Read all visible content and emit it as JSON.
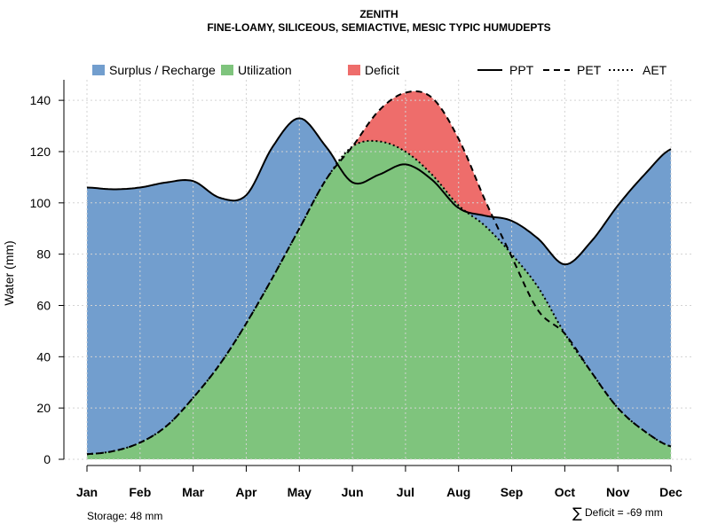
{
  "chart_data": {
    "type": "area",
    "title": "ZENITH",
    "subtitle": "FINE-LOAMY, SILICEOUS, SEMIACTIVE, MESIC TYPIC HUMUDEPTS",
    "xlabel": "",
    "ylabel": "Water (mm)",
    "categories": [
      "Jan",
      "Feb",
      "Mar",
      "Apr",
      "May",
      "Jun",
      "Jul",
      "Aug",
      "Sep",
      "Oct",
      "Nov",
      "Dec"
    ],
    "ylim": [
      0,
      148
    ],
    "yticks": [
      0,
      20,
      40,
      60,
      80,
      100,
      120,
      140
    ],
    "grid": true,
    "series": [
      {
        "name": "PPT",
        "style": "solid",
        "x": [
          1,
          1.5,
          2,
          2.5,
          3,
          3.5,
          4,
          4.5,
          5,
          5.5,
          6,
          6.5,
          7,
          7.5,
          8,
          8.5,
          9,
          9.5,
          10,
          10.5,
          11,
          11.5,
          12
        ],
        "values": [
          106,
          105.3,
          106,
          108,
          108.5,
          102,
          103,
          122,
          133,
          122,
          108,
          111,
          115,
          109,
          98,
          95,
          93,
          86,
          76,
          85,
          99,
          111,
          121
        ]
      },
      {
        "name": "PET",
        "style": "dashed",
        "x": [
          1,
          1.5,
          2,
          2.5,
          3,
          3.5,
          4,
          4.5,
          5,
          5.5,
          6,
          6.5,
          7,
          7.5,
          8,
          8.5,
          9,
          9.5,
          10,
          10.5,
          11,
          11.5,
          12
        ],
        "values": [
          2,
          3.2,
          6.5,
          13,
          24,
          37,
          53,
          71,
          90,
          109,
          122,
          136,
          143,
          141,
          125,
          101,
          79,
          58,
          49,
          34,
          20,
          11,
          5
        ]
      },
      {
        "name": "AET",
        "style": "dotted",
        "x": [
          1,
          1.5,
          2,
          2.5,
          3,
          3.5,
          4,
          4.5,
          5,
          5.5,
          6,
          6.5,
          7,
          7.5,
          8,
          8.5,
          9,
          9.5,
          10,
          10.5,
          11,
          11.5,
          12
        ],
        "values": [
          2,
          3.2,
          6.5,
          13,
          24,
          37,
          53,
          71,
          90,
          109,
          122,
          124,
          120,
          111,
          99,
          91,
          80,
          67,
          49,
          34,
          20,
          11,
          5
        ]
      }
    ],
    "areas": [
      {
        "name": "Surplus / Recharge",
        "color": "#729ECE"
      },
      {
        "name": "Utilization",
        "color": "#7FC47D"
      },
      {
        "name": "Deficit",
        "color": "#EE6D6B"
      }
    ],
    "legend_position": "top",
    "annotations": {
      "storage": "Storage: 48 mm",
      "deficit": "Deficit = -69 mm",
      "sigma": "∑"
    }
  }
}
